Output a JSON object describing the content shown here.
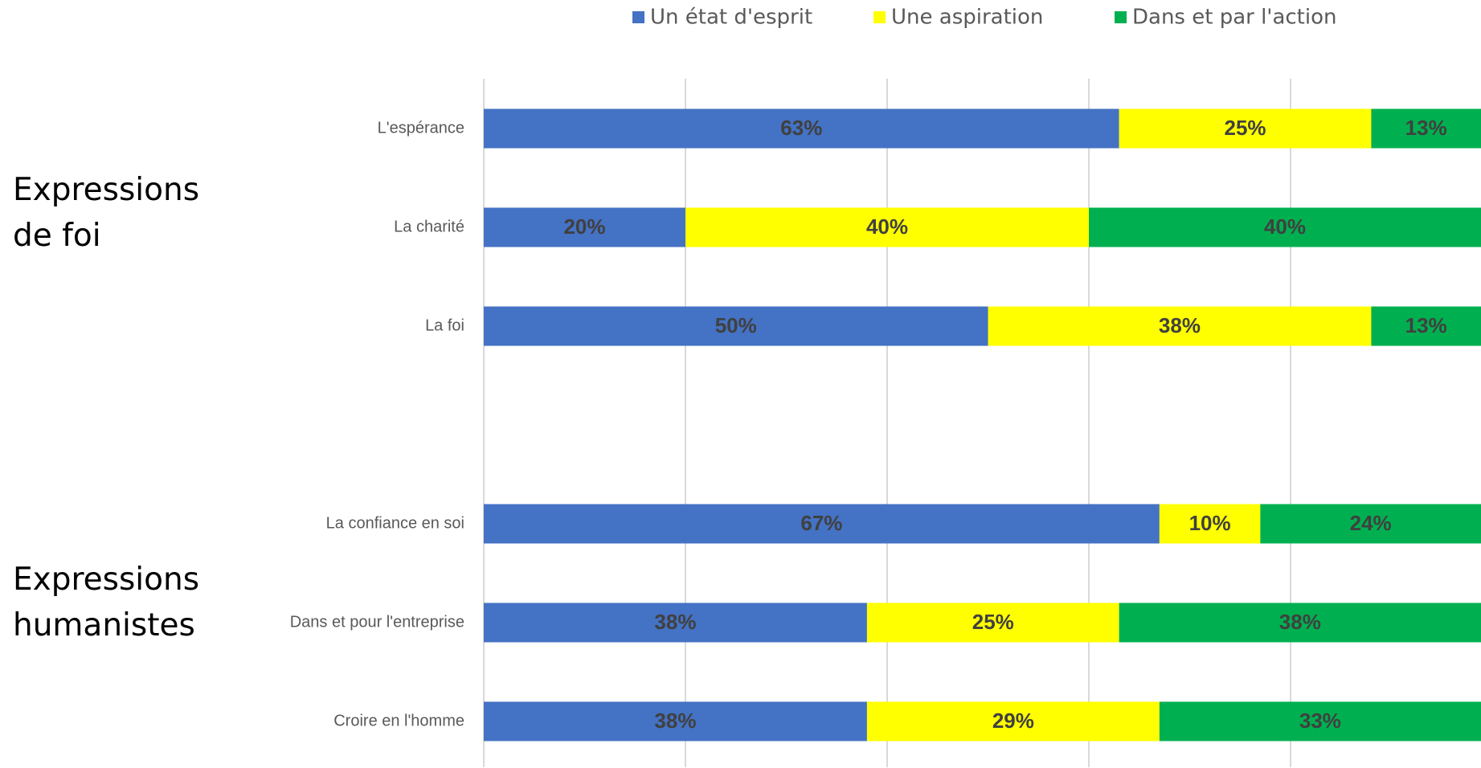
{
  "chart_data": {
    "type": "stacked_barh",
    "categories": [
      "L'espérance",
      "La charité",
      "La foi",
      null,
      "La confiance en soi",
      "Dans et pour l'entreprise",
      "Croire en l'homme"
    ],
    "series": [
      {
        "name": "Un état d'esprit",
        "color": "#4472c4",
        "values": [
          63,
          20,
          50,
          null,
          67,
          38,
          38
        ],
        "value_labels": [
          "63%",
          "20%",
          "50%",
          null,
          "67%",
          "38%",
          "38%"
        ]
      },
      {
        "name": "Une aspiration",
        "color": "#ffff00",
        "values": [
          25,
          40,
          38,
          null,
          10,
          25,
          29
        ],
        "value_labels": [
          "25%",
          "40%",
          "38%",
          null,
          "10%",
          "25%",
          "29%"
        ]
      },
      {
        "name": "Dans et par l'action",
        "color": "#00b050",
        "values": [
          13,
          40,
          13,
          null,
          24,
          38,
          33
        ],
        "value_labels": [
          "13%",
          "40%",
          "13%",
          null,
          "24%",
          "38%",
          "33%"
        ]
      }
    ],
    "xlim": [
      0,
      100
    ],
    "xticks": [
      0,
      20,
      40,
      60,
      80
    ],
    "grid": true,
    "legend": "top",
    "annotations": [
      "Expressions de foi",
      "Expressions humanistes"
    ]
  }
}
